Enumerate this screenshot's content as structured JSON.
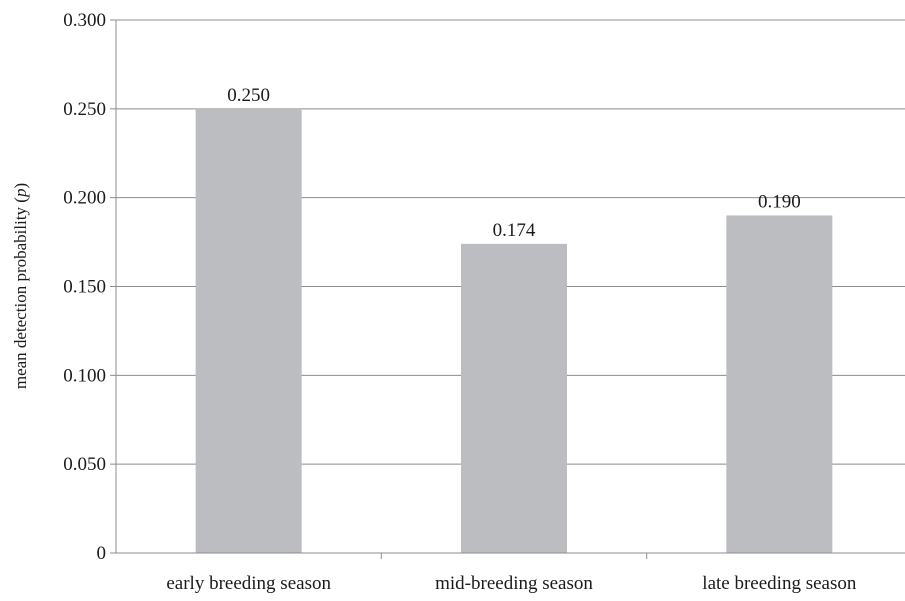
{
  "chart_data": {
    "type": "bar",
    "categories": [
      "early breeding season",
      "mid-breeding season",
      "late breeding season"
    ],
    "values": [
      0.25,
      0.174,
      0.19
    ],
    "data_labels": [
      "0.250",
      "0.174",
      "0.190"
    ],
    "ylabel": {
      "text": "mean detection probability (",
      "italic": "p",
      "suffix": ")"
    },
    "ylim": [
      0,
      0.3
    ],
    "yticks": [
      0,
      0.05,
      0.1,
      0.15,
      0.2,
      0.25,
      0.3
    ],
    "ytick_labels": [
      "0",
      "0.050",
      "0.100",
      "0.150",
      "0.200",
      "0.250",
      "0.300"
    ],
    "grid": true,
    "colors": {
      "bar": "#bcbdc0",
      "grid": "#8c8c8c",
      "axis": "#8c8c8c"
    }
  }
}
